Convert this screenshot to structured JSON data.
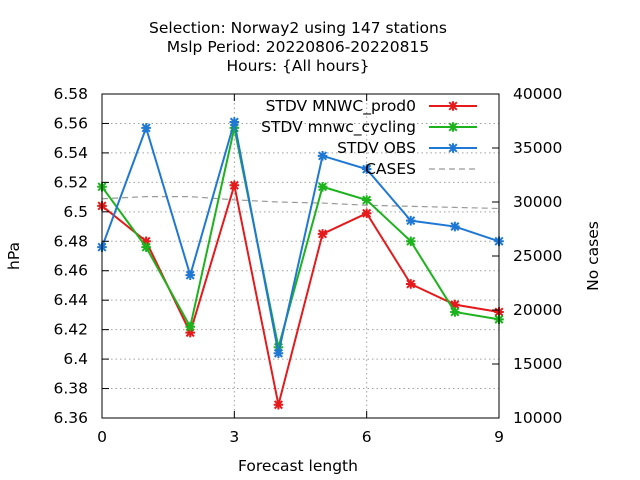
{
  "chart_data": {
    "type": "line",
    "title_lines": [
      "Selection: Norway2 using   147 stations",
      "Mslp   Period: 20220806-20220815",
      "Hours: {All hours}"
    ],
    "xlabel": "Forecast length",
    "ylabel": "hPa",
    "y2label": "No cases",
    "xlim": [
      0,
      9
    ],
    "ylim": [
      6.36,
      6.58
    ],
    "y2lim": [
      10000,
      40000
    ],
    "x_ticks": [
      0,
      3,
      6,
      9
    ],
    "y_ticks": [
      "6.36",
      "6.38",
      "6.4",
      "6.42",
      "6.44",
      "6.46",
      "6.48",
      "6.5",
      "6.52",
      "6.54",
      "6.56",
      "6.58"
    ],
    "y2_ticks": [
      "10000",
      "15000",
      "20000",
      "25000",
      "30000",
      "35000",
      "40000"
    ],
    "grid": true,
    "legend_position": "top-right",
    "x": [
      0,
      1,
      2,
      3,
      4,
      5,
      6,
      7,
      8,
      9
    ],
    "series": [
      {
        "name": "STDV MNWC_prod0",
        "color": "#e41a1c",
        "axis": "y1",
        "values": [
          6.504,
          6.48,
          6.418,
          6.518,
          6.369,
          6.485,
          6.499,
          6.451,
          6.437,
          6.432
        ]
      },
      {
        "name": "STDV mnwc_cycling",
        "color": "#1db31d",
        "axis": "y1",
        "values": [
          6.517,
          6.476,
          6.422,
          6.557,
          6.408,
          6.517,
          6.508,
          6.48,
          6.432,
          6.427
        ]
      },
      {
        "name": "STDV OBS",
        "color": "#1f78d4",
        "axis": "y1",
        "values": [
          6.476,
          6.557,
          6.457,
          6.561,
          6.404,
          6.538,
          6.529,
          6.494,
          6.49,
          6.48
        ]
      },
      {
        "name": "CASES",
        "color": "#999999",
        "axis": "y2",
        "dashed": true,
        "values": [
          30300,
          30500,
          30500,
          30200,
          30000,
          29900,
          29700,
          29600,
          29500,
          29400
        ]
      }
    ]
  }
}
